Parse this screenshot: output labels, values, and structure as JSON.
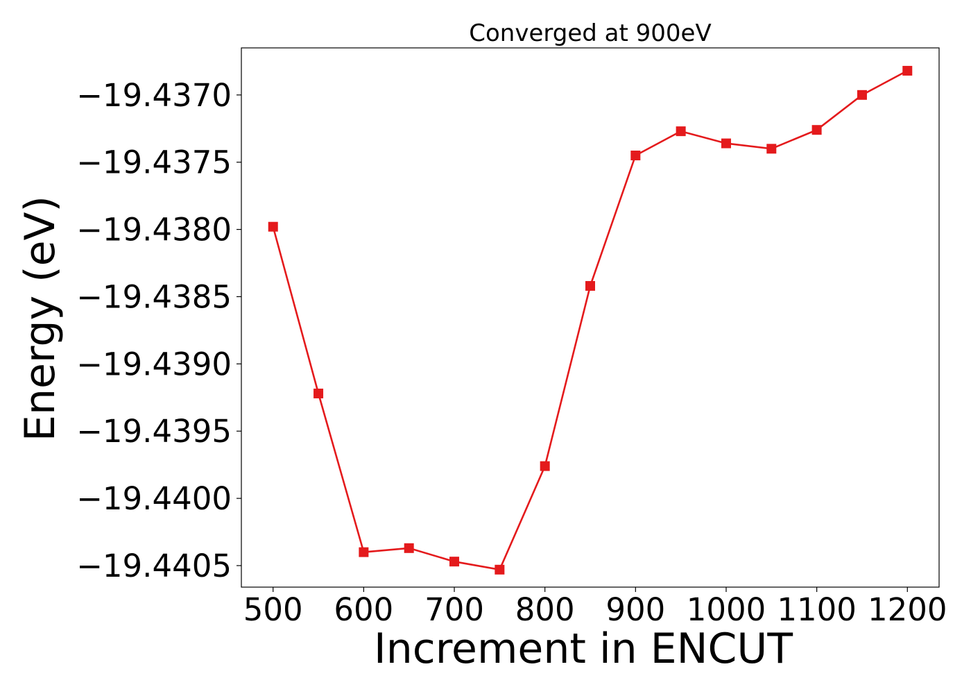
{
  "chart_data": {
    "type": "line",
    "title": "Converged at 900eV",
    "xlabel": "Increment in ENCUT",
    "ylabel": "Energy (eV)",
    "xlim": [
      465,
      1235
    ],
    "ylim": [
      -19.44066,
      -19.43665
    ],
    "x_ticks": [
      500,
      600,
      700,
      800,
      900,
      1000,
      1100,
      1200
    ],
    "x_tick_labels": [
      "500",
      "600",
      "700",
      "800",
      "900",
      "1000",
      "1100",
      "1200"
    ],
    "y_ticks": [
      -19.437,
      -19.4375,
      -19.438,
      -19.4385,
      -19.439,
      -19.4395,
      -19.44,
      -19.4405
    ],
    "y_tick_labels": [
      "−19.4370",
      "−19.4375",
      "−19.4380",
      "−19.4385",
      "−19.4390",
      "−19.4395",
      "−19.4400",
      "−19.4405"
    ],
    "grid": false,
    "series": [
      {
        "color": "#e41a1c",
        "marker": "square",
        "x": [
          500,
          550,
          600,
          650,
          700,
          750,
          800,
          850,
          900,
          950,
          1000,
          1050,
          1100,
          1150,
          1200
        ],
        "y": [
          -19.43798,
          -19.43922,
          -19.4404,
          -19.44037,
          -19.44047,
          -19.44053,
          -19.43976,
          -19.43842,
          -19.43745,
          -19.43727,
          -19.43736,
          -19.4374,
          -19.43726,
          -19.437,
          -19.43682
        ]
      }
    ]
  }
}
